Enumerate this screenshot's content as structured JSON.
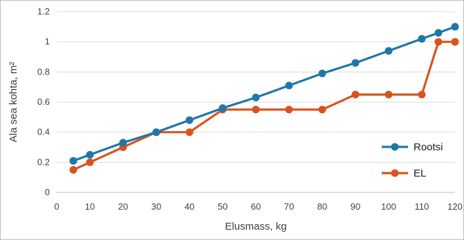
{
  "chart_data": {
    "type": "line",
    "title": "",
    "xlabel": "Elusmass, kg",
    "ylabel": "Ala sea kohta, m²",
    "xlim": [
      0,
      120
    ],
    "ylim": [
      0,
      1.2
    ],
    "xticks": [
      0,
      10,
      20,
      30,
      40,
      50,
      60,
      70,
      80,
      90,
      100,
      110,
      120
    ],
    "yticks": [
      0,
      0.2,
      0.4,
      0.6,
      0.8,
      1,
      1.2
    ],
    "grid": "horizontal",
    "legend_position": "right",
    "series": [
      {
        "name": "Rootsi",
        "color": "#1f77a8",
        "x": [
          5,
          10,
          20,
          30,
          40,
          50,
          60,
          70,
          80,
          90,
          100,
          110,
          115,
          120
        ],
        "y": [
          0.21,
          0.25,
          0.33,
          0.4,
          0.48,
          0.56,
          0.63,
          0.71,
          0.79,
          0.86,
          0.94,
          1.02,
          1.06,
          1.1
        ]
      },
      {
        "name": "EL",
        "color": "#d9531e",
        "x": [
          5,
          10,
          20,
          30,
          40,
          50,
          60,
          70,
          80,
          90,
          100,
          110,
          115,
          120
        ],
        "y": [
          0.15,
          0.2,
          0.3,
          0.4,
          0.4,
          0.55,
          0.55,
          0.55,
          0.55,
          0.65,
          0.65,
          0.65,
          1.0,
          1.0
        ]
      }
    ]
  }
}
